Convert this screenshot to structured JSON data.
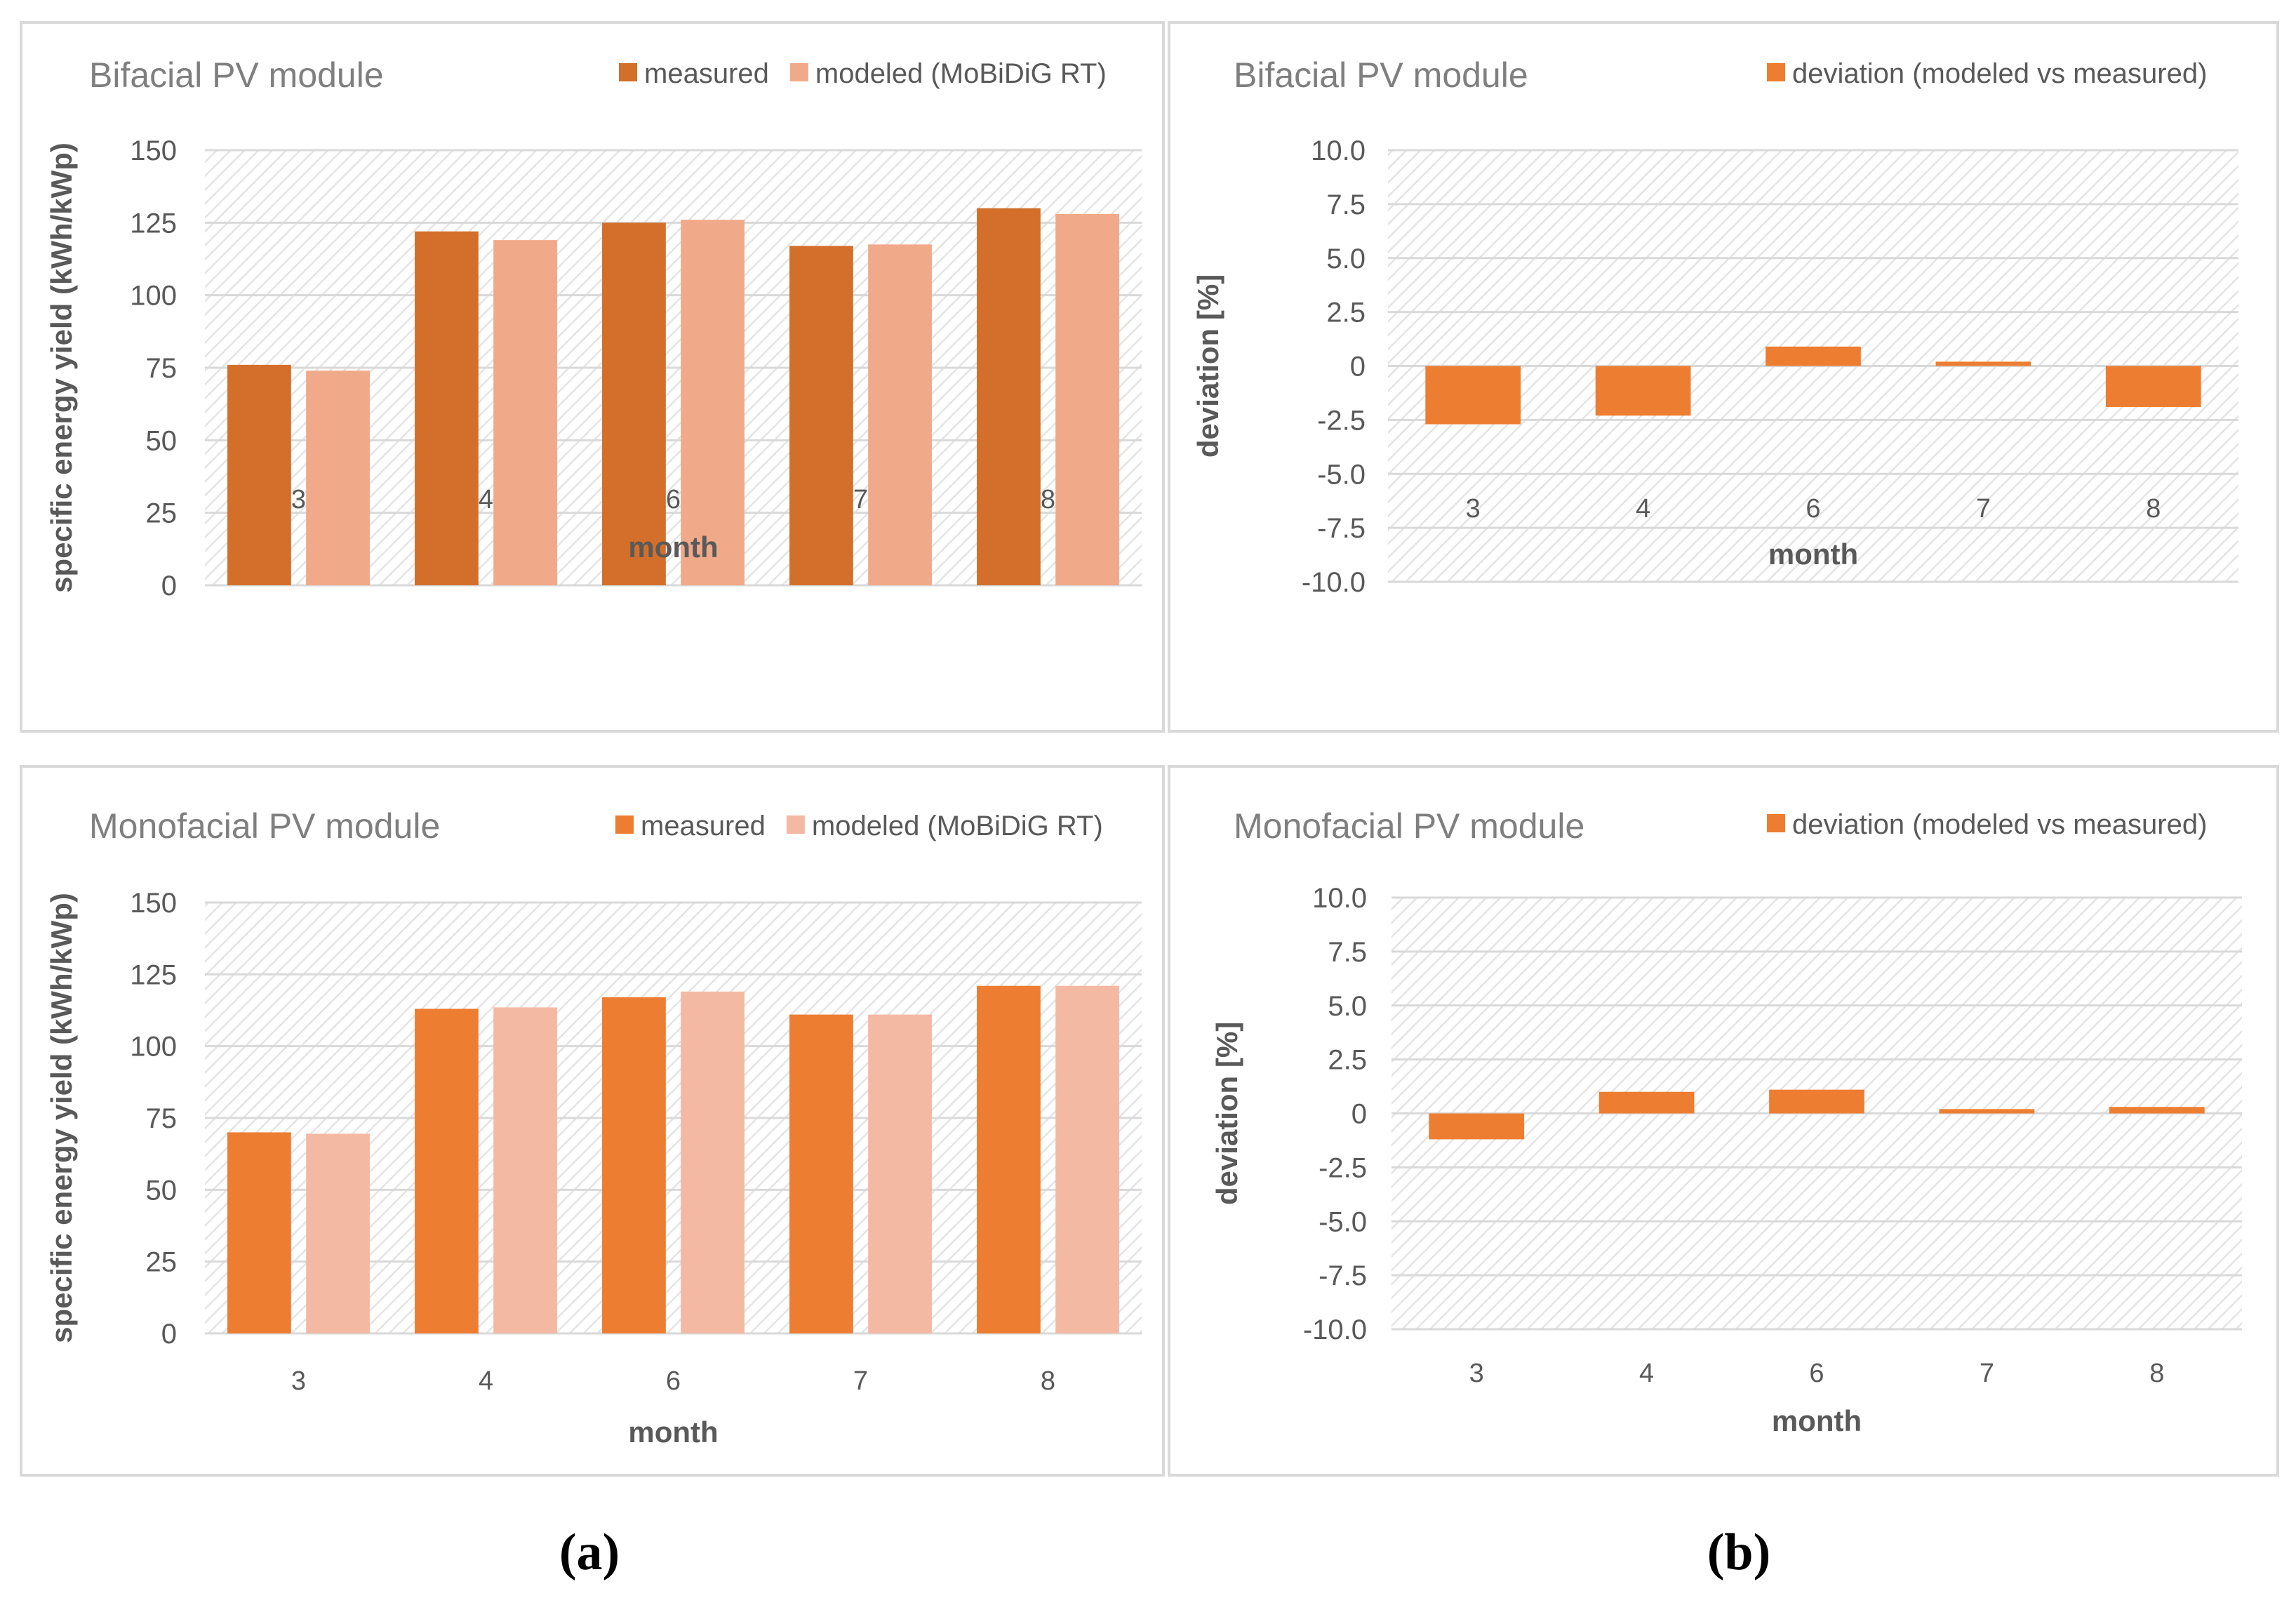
{
  "colors": {
    "bif_measured": "#d36f2a",
    "bif_modeled": "#f0a989",
    "mono_measured": "#ed7d31",
    "mono_modeled": "#f4b9a3",
    "deviation": "#ed7d31",
    "grid": "#d9d9d9",
    "hatch": "#e4e4e4",
    "title": "#7f7f7f",
    "tick": "#595959"
  },
  "chart_data": [
    {
      "id": "bifacial-yield",
      "type": "bar",
      "title": "Bifacial PV module",
      "xlabel": "month",
      "ylabel": "specific energy yield (kWh/kWp)",
      "categories": [
        "3",
        "4",
        "6",
        "7",
        "8"
      ],
      "ylim": [
        0,
        150
      ],
      "yticks": [
        "0",
        "25",
        "50",
        "75",
        "100",
        "125",
        "150"
      ],
      "series": [
        {
          "name": "measured",
          "values": [
            76,
            122,
            125,
            117,
            130
          ]
        },
        {
          "name": "modeled (MoBiDiG RT)",
          "values": [
            74,
            119,
            126,
            117.5,
            128
          ]
        }
      ]
    },
    {
      "id": "bifacial-deviation",
      "type": "bar",
      "title": "Bifacial PV module",
      "xlabel": "month",
      "ylabel": "deviation [%]",
      "categories": [
        "3",
        "4",
        "6",
        "7",
        "8"
      ],
      "ylim": [
        -10,
        10
      ],
      "yticks": [
        "-10.0",
        "-7.5",
        "-5.0",
        "-2.5",
        "0",
        "2.5",
        "5.0",
        "7.5",
        "10.0"
      ],
      "series": [
        {
          "name": "deviation (modeled vs measured)",
          "values": [
            -2.7,
            -2.3,
            0.9,
            0.2,
            -1.9
          ]
        }
      ]
    },
    {
      "id": "monofacial-yield",
      "type": "bar",
      "title": "Monofacial PV module",
      "xlabel": "month",
      "ylabel": "specific energy yield (kWh/kWp)",
      "categories": [
        "3",
        "4",
        "6",
        "7",
        "8"
      ],
      "ylim": [
        0,
        150
      ],
      "yticks": [
        "0",
        "25",
        "50",
        "75",
        "100",
        "125",
        "150"
      ],
      "series": [
        {
          "name": "measured",
          "values": [
            70,
            113,
            117,
            111,
            121
          ]
        },
        {
          "name": "modeled (MoBiDiG RT)",
          "values": [
            69.5,
            113.5,
            119,
            111,
            121
          ]
        }
      ]
    },
    {
      "id": "monofacial-deviation",
      "type": "bar",
      "title": "Monofacial PV module",
      "xlabel": "month",
      "ylabel": "deviation [%]",
      "categories": [
        "3",
        "4",
        "6",
        "7",
        "8"
      ],
      "ylim": [
        -10,
        10
      ],
      "yticks": [
        "-10.0",
        "-7.5",
        "-5.0",
        "-2.5",
        "0",
        "2.5",
        "5.0",
        "7.5",
        "10.0"
      ],
      "series": [
        {
          "name": "deviation (modeled vs measured)",
          "values": [
            -1.2,
            1.0,
            1.1,
            0.2,
            0.3
          ]
        }
      ]
    }
  ],
  "captions": {
    "a": "(a)",
    "b": "(b)"
  }
}
